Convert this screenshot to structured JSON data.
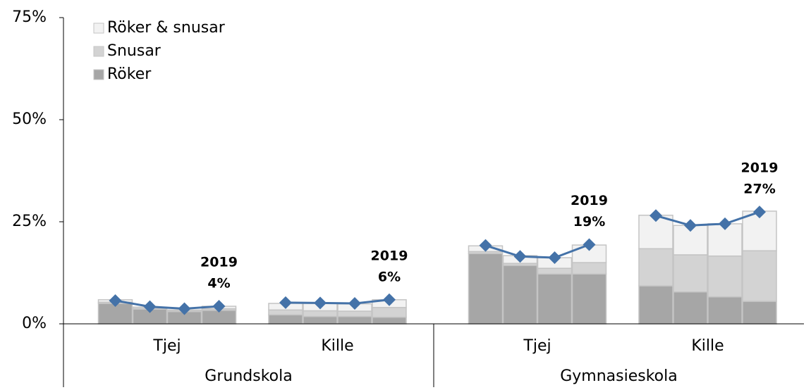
{
  "chart_data": {
    "type": "stacked-bar-line",
    "categories": [
      null,
      null,
      null,
      null,
      null,
      null,
      null,
      null,
      null,
      null,
      null,
      null,
      null,
      null,
      null,
      null
    ],
    "groups": [
      {
        "label": "Grundskola",
        "subgroups": [
          {
            "label": "Tjej",
            "annotation": [
              "2019",
              "4%"
            ]
          },
          {
            "label": "Kille",
            "annotation": [
              "2019",
              "6%"
            ]
          }
        ]
      },
      {
        "label": "Gymnasieskola",
        "subgroups": [
          {
            "label": "Tjej",
            "annotation": [
              "2019",
              "19%"
            ]
          },
          {
            "label": "Kille",
            "annotation": [
              "2019",
              "27%"
            ]
          }
        ]
      }
    ],
    "series": [
      {
        "name": "Röker",
        "color": "#a6a6a6",
        "values": [
          5.0,
          3.6,
          3.0,
          3.3,
          2.2,
          1.8,
          1.8,
          1.6,
          17.2,
          14.3,
          12.2,
          12.2,
          9.3,
          7.8,
          6.6,
          5.5
        ]
      },
      {
        "name": "Snusar",
        "color": "#d3d3d3",
        "values": [
          0.3,
          0.2,
          0.2,
          0.4,
          1.2,
          1.4,
          1.3,
          2.4,
          0.5,
          0.5,
          1.4,
          2.8,
          9.1,
          9.1,
          10.0,
          12.4
        ]
      },
      {
        "name": "Röker & snusar",
        "color": "#f2f2f2",
        "values": [
          0.6,
          0.3,
          0.2,
          0.6,
          1.6,
          1.8,
          1.8,
          1.9,
          1.4,
          1.9,
          2.6,
          4.3,
          8.2,
          7.2,
          7.9,
          9.7
        ]
      }
    ],
    "line": {
      "color": "#4472a8",
      "values": [
        5.7,
        4.2,
        3.7,
        4.3,
        5.2,
        5.1,
        5.0,
        5.9,
        19.2,
        16.5,
        16.2,
        19.4,
        26.5,
        24.1,
        24.5,
        27.4
      ]
    },
    "ylim": [
      0,
      75
    ],
    "yticks": [
      {
        "value": 0,
        "label": "0%"
      },
      {
        "value": 25,
        "label": "25%"
      },
      {
        "value": 50,
        "label": "50%"
      },
      {
        "value": 75,
        "label": "75%"
      }
    ],
    "legend": "top-left"
  }
}
